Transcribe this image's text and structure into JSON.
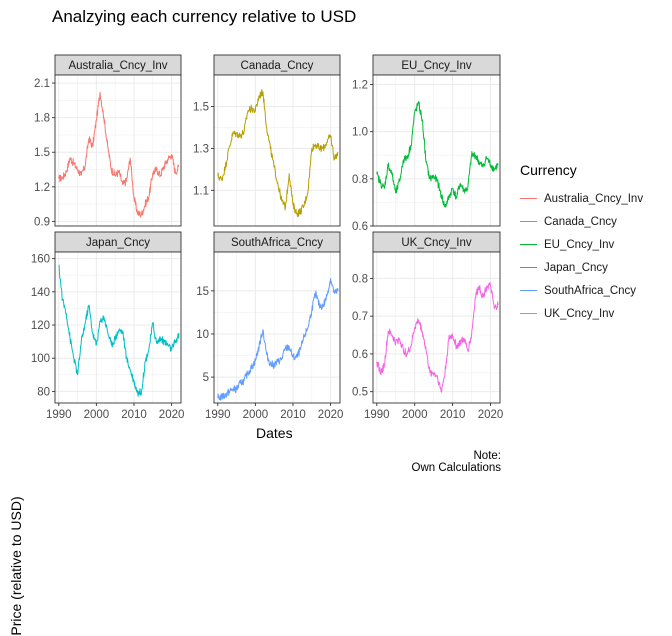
{
  "title": "Analzying each currency relative to USD",
  "caption": [
    "Note:",
    "Own Calculations"
  ],
  "chart_data": {
    "type": "line",
    "facet": "wrap",
    "scales": "free_y",
    "xlabel": "Dates",
    "ylabel": "Price (relative to USD)",
    "xlim": [
      1989,
      2022.5
    ],
    "xticks": [
      1990,
      2000,
      2010,
      2020
    ],
    "legend_title": "Currency",
    "legend_position": "right",
    "grid": true,
    "panels": [
      {
        "name": "Australia_Cncy_Inv",
        "color": "#F8766D",
        "ylim": [
          0.86,
          2.17
        ],
        "yticks": [
          0.9,
          1.2,
          1.5,
          1.8,
          2.1
        ],
        "ytick_labels": [
          "0.9",
          "1.2",
          "1.5",
          "1.8",
          "2.1"
        ],
        "x": [
          1990,
          1991,
          1992,
          1993,
          1994,
          1995,
          1996,
          1997,
          1998,
          1999,
          2000,
          2001,
          2002,
          2003,
          2004,
          2005,
          2006,
          2007,
          2008,
          2009,
          2010,
          2011,
          2012,
          2013,
          2014,
          2015,
          2016,
          2017,
          2018,
          2019,
          2020,
          2021,
          2022
        ],
        "values": [
          1.27,
          1.28,
          1.33,
          1.45,
          1.4,
          1.35,
          1.3,
          1.38,
          1.62,
          1.55,
          1.78,
          2.02,
          1.8,
          1.55,
          1.35,
          1.3,
          1.33,
          1.22,
          1.25,
          1.45,
          1.1,
          0.97,
          0.96,
          1.05,
          1.12,
          1.32,
          1.35,
          1.3,
          1.38,
          1.44,
          1.48,
          1.32,
          1.38
        ]
      },
      {
        "name": "Canada_Cncy",
        "color": "#B79F00",
        "ylim": [
          0.93,
          1.65
        ],
        "yticks": [
          1.1,
          1.3,
          1.5
        ],
        "ytick_labels": [
          "1.1",
          "1.3",
          "1.5"
        ],
        "x": [
          1990,
          1991,
          1992,
          1993,
          1994,
          1995,
          1996,
          1997,
          1998,
          1999,
          2000,
          2001,
          2002,
          2003,
          2004,
          2005,
          2006,
          2007,
          2008,
          2009,
          2010,
          2011,
          2012,
          2013,
          2014,
          2015,
          2016,
          2017,
          2018,
          2019,
          2020,
          2021,
          2022
        ],
        "values": [
          1.17,
          1.15,
          1.21,
          1.3,
          1.37,
          1.37,
          1.36,
          1.38,
          1.48,
          1.49,
          1.48,
          1.55,
          1.57,
          1.4,
          1.3,
          1.21,
          1.13,
          1.05,
          1.02,
          1.18,
          1.03,
          0.99,
          1.0,
          1.03,
          1.1,
          1.3,
          1.32,
          1.3,
          1.3,
          1.33,
          1.36,
          1.25,
          1.28
        ]
      },
      {
        "name": "EU_Cncy_Inv",
        "color": "#00BA38",
        "ylim": [
          0.6,
          1.24
        ],
        "yticks": [
          0.6,
          0.8,
          1.0,
          1.2
        ],
        "ytick_labels": [
          "0.6",
          "0.8",
          "1.0",
          "1.2"
        ],
        "x": [
          1990,
          1991,
          1992,
          1993,
          1994,
          1995,
          1996,
          1997,
          1998,
          1999,
          2000,
          2001,
          2002,
          2003,
          2004,
          2005,
          2006,
          2007,
          2008,
          2009,
          2010,
          2011,
          2012,
          2013,
          2014,
          2015,
          2016,
          2017,
          2018,
          2019,
          2020,
          2021,
          2022
        ],
        "values": [
          0.82,
          0.78,
          0.76,
          0.86,
          0.82,
          0.74,
          0.79,
          0.88,
          0.89,
          0.94,
          1.08,
          1.12,
          1.05,
          0.87,
          0.8,
          0.81,
          0.79,
          0.73,
          0.68,
          0.72,
          0.76,
          0.72,
          0.78,
          0.75,
          0.76,
          0.9,
          0.9,
          0.87,
          0.85,
          0.89,
          0.86,
          0.84,
          0.86
        ]
      },
      {
        "name": "Japan_Cncy",
        "color": "#00BFC4",
        "ylim": [
          73,
          164
        ],
        "yticks": [
          80,
          100,
          120,
          140,
          160
        ],
        "ytick_labels": [
          "80",
          "100",
          "120",
          "140",
          "160"
        ],
        "x": [
          1990,
          1991,
          1992,
          1993,
          1994,
          1995,
          1996,
          1997,
          1998,
          1999,
          2000,
          2001,
          2002,
          2003,
          2004,
          2005,
          2006,
          2007,
          2008,
          2009,
          2010,
          2011,
          2012,
          2013,
          2014,
          2015,
          2016,
          2017,
          2018,
          2019,
          2020,
          2021,
          2022
        ],
        "values": [
          156,
          135,
          127,
          112,
          100,
          90,
          110,
          121,
          132,
          115,
          108,
          122,
          125,
          116,
          108,
          112,
          117,
          116,
          100,
          93,
          86,
          79,
          80,
          98,
          106,
          121,
          109,
          112,
          110,
          108,
          105,
          110,
          114
        ]
      },
      {
        "name": "SouthAfrica_Cncy",
        "color": "#619CFF",
        "ylim": [
          2.0,
          19.5
        ],
        "yticks": [
          5,
          10,
          15
        ],
        "ytick_labels": [
          "5",
          "10",
          "15"
        ],
        "x": [
          1990,
          1991,
          1992,
          1993,
          1994,
          1995,
          1996,
          1997,
          1998,
          1999,
          2000,
          2001,
          2002,
          2003,
          2004,
          2005,
          2006,
          2007,
          2008,
          2009,
          2010,
          2011,
          2012,
          2013,
          2014,
          2015,
          2016,
          2017,
          2018,
          2019,
          2020,
          2021,
          2022
        ],
        "values": [
          2.6,
          2.7,
          2.9,
          3.3,
          3.6,
          3.6,
          4.3,
          4.6,
          5.5,
          6.1,
          6.9,
          8.6,
          10.5,
          7.6,
          6.5,
          6.4,
          6.8,
          7.1,
          8.3,
          8.5,
          7.3,
          7.3,
          8.2,
          9.7,
          10.8,
          12.8,
          14.7,
          13.3,
          13.2,
          14.4,
          16.4,
          14.7,
          15.0
        ]
      },
      {
        "name": "UK_Cncy_Inv",
        "color": "#F564E3",
        "ylim": [
          0.47,
          0.87
        ],
        "yticks": [
          0.5,
          0.6,
          0.7,
          0.8
        ],
        "ytick_labels": [
          "0.5",
          "0.6",
          "0.7",
          "0.8"
        ],
        "x": [
          1990,
          1991,
          1992,
          1993,
          1994,
          1995,
          1996,
          1997,
          1998,
          1999,
          2000,
          2001,
          2002,
          2003,
          2004,
          2005,
          2006,
          2007,
          2008,
          2009,
          2010,
          2011,
          2012,
          2013,
          2014,
          2015,
          2016,
          2017,
          2018,
          2019,
          2020,
          2021,
          2022
        ],
        "values": [
          0.58,
          0.55,
          0.57,
          0.66,
          0.65,
          0.63,
          0.64,
          0.61,
          0.6,
          0.62,
          0.67,
          0.69,
          0.66,
          0.61,
          0.55,
          0.55,
          0.54,
          0.5,
          0.55,
          0.64,
          0.65,
          0.62,
          0.63,
          0.64,
          0.61,
          0.65,
          0.75,
          0.78,
          0.75,
          0.78,
          0.78,
          0.72,
          0.73
        ]
      }
    ]
  }
}
